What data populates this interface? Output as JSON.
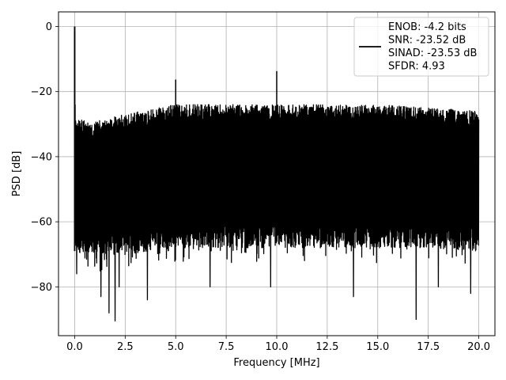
{
  "chart_data": {
    "type": "line",
    "xlabel": "Frequency [MHz]",
    "ylabel": "PSD [dB]",
    "xlim": [
      -0.8,
      20.8
    ],
    "ylim": [
      -95,
      4.5
    ],
    "xticks": [
      0.0,
      2.5,
      5.0,
      7.5,
      10.0,
      12.5,
      15.0,
      17.5,
      20.0
    ],
    "xtick_labels": [
      "0.0",
      "2.5",
      "5.0",
      "7.5",
      "10.0",
      "12.5",
      "15.0",
      "17.5",
      "20.0"
    ],
    "yticks": [
      0,
      -20,
      -40,
      -60,
      -80
    ],
    "ytick_labels": [
      "0",
      "−20",
      "−40",
      "−60",
      "−80"
    ],
    "grid": true,
    "legend_position": "top-right",
    "legend_lines": [
      "ENOB: -4.2 bits",
      "SNR: -23.52 dB",
      "SINAD: -23.53 dB",
      "SFDR: 4.93"
    ],
    "series_color": "#000000",
    "noise_floor": {
      "x": [
        0.0,
        0.5,
        1.0,
        2.5,
        5.0,
        7.5,
        10.0,
        12.5,
        15.0,
        17.5,
        20.0
      ],
      "upper": [
        -28,
        -29,
        -29,
        -27,
        -24,
        -24,
        -24,
        -24,
        -24,
        -25,
        -26
      ],
      "lower": [
        -69,
        -70,
        -70,
        -70,
        -68,
        -68,
        -68,
        -68,
        -68,
        -68,
        -69
      ]
    },
    "spikes": [
      {
        "x": 0.0,
        "y": 0.0
      },
      {
        "x": 0.02,
        "y": -24.0
      },
      {
        "x": 5.0,
        "y": -16.3
      },
      {
        "x": 10.0,
        "y": -13.7
      }
    ],
    "deep_dips": [
      {
        "x": 0.1,
        "y": -76
      },
      {
        "x": 1.3,
        "y": -83
      },
      {
        "x": 1.7,
        "y": -88
      },
      {
        "x": 2.0,
        "y": -90.5
      },
      {
        "x": 2.2,
        "y": -80
      },
      {
        "x": 3.6,
        "y": -84
      },
      {
        "x": 6.7,
        "y": -80
      },
      {
        "x": 9.7,
        "y": -80
      },
      {
        "x": 13.8,
        "y": -83
      },
      {
        "x": 16.9,
        "y": -90
      },
      {
        "x": 18.0,
        "y": -80
      },
      {
        "x": 19.6,
        "y": -82
      }
    ]
  }
}
